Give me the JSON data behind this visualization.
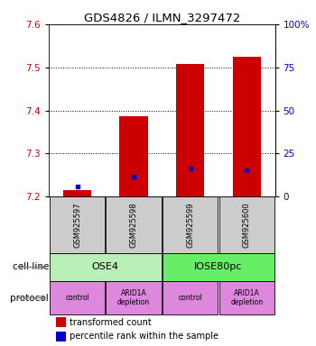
{
  "title": "GDS4826 / ILMN_3297472",
  "samples": [
    "GSM925597",
    "GSM925598",
    "GSM925599",
    "GSM925600"
  ],
  "red_bar_values": [
    7.214,
    7.387,
    7.507,
    7.524
  ],
  "blue_marker_values": [
    7.223,
    7.246,
    7.265,
    7.26
  ],
  "ylim": [
    7.2,
    7.6
  ],
  "yticks_left": [
    7.2,
    7.3,
    7.4,
    7.5,
    7.6
  ],
  "yticks_right": [
    0,
    25,
    50,
    75,
    100
  ],
  "ytick_right_labels": [
    "0",
    "25",
    "50",
    "75",
    "100%"
  ],
  "cell_line_labels": [
    "OSE4",
    "IOSE80pc"
  ],
  "cell_line_spans": [
    [
      0,
      1
    ],
    [
      2,
      3
    ]
  ],
  "cell_line_colors": [
    "#b8f0b8",
    "#66ee66"
  ],
  "protocol_labels": [
    "control",
    "ARID1A\ndepletion",
    "control",
    "ARID1A\ndepletion"
  ],
  "protocol_color": "#dd88dd",
  "sample_box_color": "#cccccc",
  "bar_color": "#cc0000",
  "marker_color": "#0000cc",
  "ylabel_left_color": "#cc0000",
  "ylabel_right_color": "#0000cc",
  "bar_width": 0.5,
  "legend_red": "transformed count",
  "legend_blue": "percentile rank within the sample",
  "label_cell_line": "cell line",
  "label_protocol": "protocol"
}
